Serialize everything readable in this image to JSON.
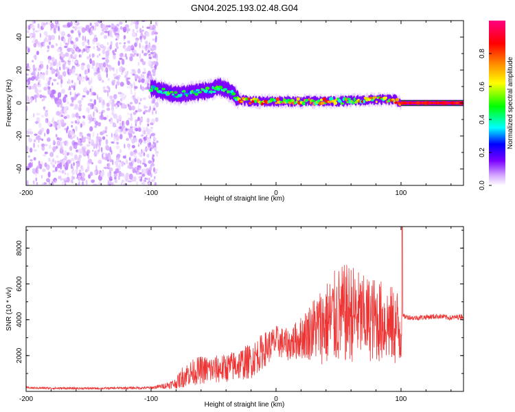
{
  "title": "GN04.2025.193.02.48.G04",
  "colors": {
    "snr_line": "#ee3333",
    "frame": "#000000",
    "background": "#ffffff"
  },
  "chart_data": [
    {
      "type": "heatmap",
      "xlabel": "Height of straight line (km)",
      "ylabel": "Frequency (Hz)",
      "xlim": [
        -200,
        150
      ],
      "ylim": [
        -50,
        50
      ],
      "xticks": [
        -200,
        -100,
        0,
        100
      ],
      "yticks": [
        -40,
        -20,
        0,
        20,
        40
      ],
      "colorbar": {
        "label": "Normalized spectral amplitude",
        "range": [
          0,
          1
        ],
        "ticks": [
          "0.0",
          "0.2",
          "0.4",
          "0.6",
          "0.8"
        ],
        "colormap": [
          "#ffffff",
          "#d5a8ff",
          "#7a00ff",
          "#0000ff",
          "#00ffff",
          "#00ff00",
          "#ffff00",
          "#ff8800",
          "#ff0000",
          "#ff0080"
        ]
      },
      "noise_region": {
        "x_range": [
          -200,
          -95
        ],
        "y_range": [
          -50,
          50
        ],
        "typical_amplitude": 0.1
      },
      "ridge": [
        {
          "x": -100,
          "y": 9
        },
        {
          "x": -90,
          "y": 7
        },
        {
          "x": -80,
          "y": 5
        },
        {
          "x": -70,
          "y": 6
        },
        {
          "x": -60,
          "y": 7
        },
        {
          "x": -50,
          "y": 8
        },
        {
          "x": -45,
          "y": 10
        },
        {
          "x": -40,
          "y": 8
        },
        {
          "x": -35,
          "y": 6
        },
        {
          "x": -30,
          "y": 2
        },
        {
          "x": -20,
          "y": 1
        },
        {
          "x": 0,
          "y": 1
        },
        {
          "x": 20,
          "y": 1
        },
        {
          "x": 50,
          "y": 1
        },
        {
          "x": 80,
          "y": 2
        },
        {
          "x": 95,
          "y": 2
        },
        {
          "x": 100,
          "y": 0
        },
        {
          "x": 150,
          "y": 0
        }
      ]
    },
    {
      "type": "line",
      "xlabel": "Height of straight line (km)",
      "ylabel": "SNR (10 * v/v)",
      "xlim": [
        -200,
        150
      ],
      "ylim": [
        0,
        9200
      ],
      "xticks": [
        -200,
        -100,
        0,
        100
      ],
      "yticks": [
        2000,
        4000,
        6000,
        8000
      ],
      "series": [
        {
          "x": [
            -200,
            -180,
            -160,
            -140,
            -120,
            -100,
            -90,
            -80,
            -75,
            -70,
            -60,
            -50,
            -40,
            -30,
            -20,
            -10,
            0,
            10,
            20,
            30,
            40,
            50,
            60,
            70,
            80,
            90,
            95,
            100,
            101,
            110,
            120,
            130,
            140,
            150
          ],
          "values": [
            200,
            180,
            170,
            170,
            190,
            200,
            300,
            450,
            800,
            1000,
            1200,
            1200,
            1300,
            1500,
            1700,
            2300,
            2800,
            2600,
            3000,
            3500,
            3800,
            4200,
            4400,
            4100,
            4000,
            3800,
            3600,
            3500,
            4200,
            4100,
            4150,
            4200,
            4100,
            4200
          ],
          "spread": [
            60,
            60,
            60,
            60,
            60,
            80,
            150,
            300,
            600,
            700,
            800,
            800,
            800,
            900,
            1000,
            1000,
            900,
            900,
            1200,
            1800,
            2400,
            2800,
            2800,
            2400,
            2400,
            2200,
            2200,
            2400,
            150,
            150,
            150,
            150,
            150,
            150
          ]
        }
      ]
    }
  ]
}
